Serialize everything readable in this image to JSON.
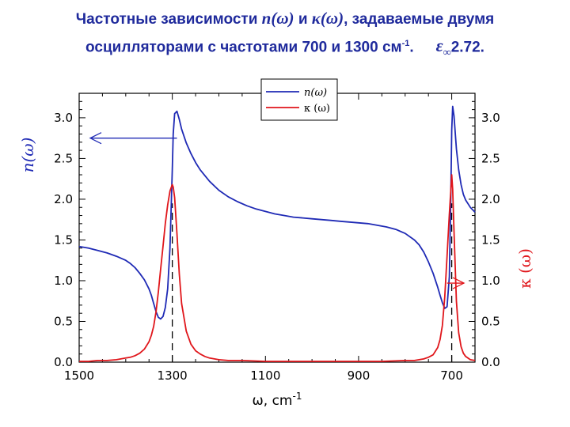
{
  "title": {
    "line1_a": "Частотные зависимости",
    "n_symbol": "n(ω)",
    "and_word": "и",
    "k_symbol": "κ(ω)",
    "line1_b": ", задаваемые двумя",
    "line2_a": "осцилляторами с частотами 700 и 1300 см",
    "line2_sup": "-1",
    "line2_dot": ".",
    "eps_symbol": "ε",
    "eps_sub": "∞",
    "eps_value": "2.72."
  },
  "chart_data": {
    "type": "line",
    "xlabel": "ω, cm",
    "xlabel_sup": "-1",
    "ylabel_left": "n(ω)",
    "ylabel_right": "κ (ω)",
    "xlim": [
      1500,
      650
    ],
    "ylim_left": [
      0,
      3.3
    ],
    "ylim_right": [
      0,
      3.3
    ],
    "x_reversed": true,
    "x_ticks": [
      "1500",
      "1300",
      "1100",
      "900",
      "700"
    ],
    "x_tick_values": [
      1500,
      1300,
      1100,
      900,
      700
    ],
    "y_ticks_left": [
      "0.0",
      "0.5",
      "1.0",
      "1.5",
      "2.0",
      "2.5",
      "3.0"
    ],
    "y_ticks_right": [
      "0.0",
      "0.5",
      "1.0",
      "1.5",
      "2.0",
      "2.5",
      "3.0"
    ],
    "y_tick_values": [
      0,
      0.5,
      1.0,
      1.5,
      2.0,
      2.5,
      3.0
    ],
    "oscillators": [
      1300,
      700
    ],
    "legend_position": "top-center",
    "colors": {
      "n": "#1f2ab5",
      "k": "#e0161b"
    },
    "series": [
      {
        "name": "n(ω)",
        "axis": "left",
        "x": [
          1500,
          1480,
          1460,
          1440,
          1420,
          1400,
          1390,
          1380,
          1370,
          1360,
          1350,
          1345,
          1340,
          1335,
          1330,
          1325,
          1320,
          1315,
          1310,
          1305,
          1300,
          1298,
          1295,
          1290,
          1285,
          1280,
          1270,
          1260,
          1250,
          1240,
          1220,
          1200,
          1180,
          1160,
          1140,
          1120,
          1100,
          1080,
          1060,
          1040,
          1020,
          1000,
          980,
          960,
          940,
          920,
          900,
          880,
          860,
          840,
          820,
          800,
          780,
          770,
          760,
          750,
          740,
          730,
          725,
          720,
          715,
          710,
          705,
          702,
          700,
          698,
          695,
          690,
          685,
          680,
          675,
          670,
          660,
          650
        ],
        "y": [
          1.42,
          1.4,
          1.37,
          1.34,
          1.3,
          1.25,
          1.21,
          1.16,
          1.09,
          1.01,
          0.9,
          0.82,
          0.72,
          0.62,
          0.55,
          0.53,
          0.56,
          0.67,
          0.9,
          1.4,
          2.35,
          2.8,
          3.05,
          3.08,
          2.98,
          2.86,
          2.69,
          2.56,
          2.45,
          2.36,
          2.22,
          2.11,
          2.03,
          1.97,
          1.92,
          1.88,
          1.85,
          1.82,
          1.8,
          1.78,
          1.77,
          1.76,
          1.75,
          1.74,
          1.73,
          1.72,
          1.71,
          1.7,
          1.68,
          1.66,
          1.63,
          1.58,
          1.5,
          1.44,
          1.35,
          1.23,
          1.09,
          0.92,
          0.82,
          0.73,
          0.66,
          0.68,
          1.05,
          2.0,
          2.85,
          3.14,
          3.02,
          2.62,
          2.36,
          2.18,
          2.06,
          1.99,
          1.9,
          1.84
        ]
      },
      {
        "name": "κ (ω)",
        "axis": "right",
        "x": [
          1500,
          1480,
          1460,
          1440,
          1420,
          1400,
          1390,
          1380,
          1370,
          1360,
          1350,
          1345,
          1340,
          1335,
          1330,
          1325,
          1320,
          1315,
          1310,
          1305,
          1302,
          1300,
          1298,
          1295,
          1290,
          1285,
          1280,
          1270,
          1260,
          1250,
          1240,
          1230,
          1220,
          1200,
          1180,
          1150,
          1100,
          1000,
          900,
          850,
          800,
          780,
          760,
          750,
          740,
          730,
          725,
          720,
          715,
          710,
          705,
          702,
          700,
          698,
          695,
          690,
          685,
          680,
          675,
          670,
          660,
          650
        ],
        "y": [
          0.01,
          0.01,
          0.02,
          0.02,
          0.03,
          0.05,
          0.06,
          0.08,
          0.11,
          0.16,
          0.25,
          0.33,
          0.44,
          0.62,
          0.86,
          1.14,
          1.42,
          1.7,
          1.93,
          2.1,
          2.15,
          2.18,
          2.15,
          2.02,
          1.58,
          1.08,
          0.72,
          0.38,
          0.22,
          0.14,
          0.1,
          0.07,
          0.05,
          0.03,
          0.02,
          0.02,
          0.01,
          0.01,
          0.01,
          0.01,
          0.02,
          0.02,
          0.04,
          0.06,
          0.09,
          0.18,
          0.28,
          0.45,
          0.8,
          1.3,
          1.82,
          2.1,
          2.3,
          2.12,
          1.6,
          0.75,
          0.36,
          0.19,
          0.11,
          0.07,
          0.03,
          0.02
        ]
      }
    ]
  }
}
